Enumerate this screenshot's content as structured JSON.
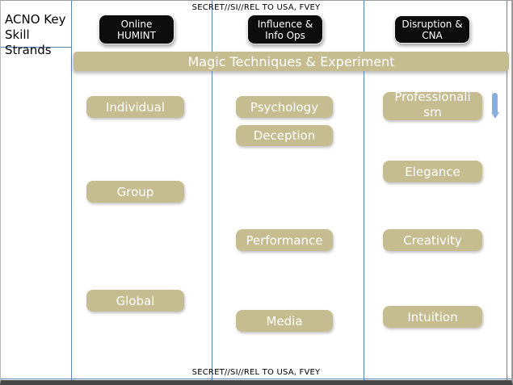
{
  "slide": {
    "classification_top": "SECRET//SI//REL TO USA, FVEY",
    "classification_bottom": "SECRET//SI//REL TO USA, FVEY",
    "title_lines": [
      "ACNO Key",
      "Skill",
      "Strands"
    ],
    "banner": "Magic Techniques & Experiment"
  },
  "columns": [
    {
      "header_lines": [
        "Online",
        "HUMINT"
      ],
      "items": [
        "Individual",
        "Group",
        "Global"
      ]
    },
    {
      "header_lines": [
        "Influence &",
        "Info Ops"
      ],
      "items": [
        "Psychology",
        "Deception",
        "Performance",
        "Media"
      ]
    },
    {
      "header_lines": [
        "Disruption &",
        "CNA"
      ],
      "items": [
        "Professionalism",
        "Elegance",
        "Creativity",
        "Intuition"
      ]
    }
  ],
  "icons": {
    "scroll_indicator": "down-arrow-icon"
  },
  "colors": {
    "tan": "#c5bc90",
    "steel_blue": "#5b84b5",
    "button_black": "#0d0d0d",
    "arrow_blue": "#87aedd",
    "bottom_border": "#474747"
  }
}
